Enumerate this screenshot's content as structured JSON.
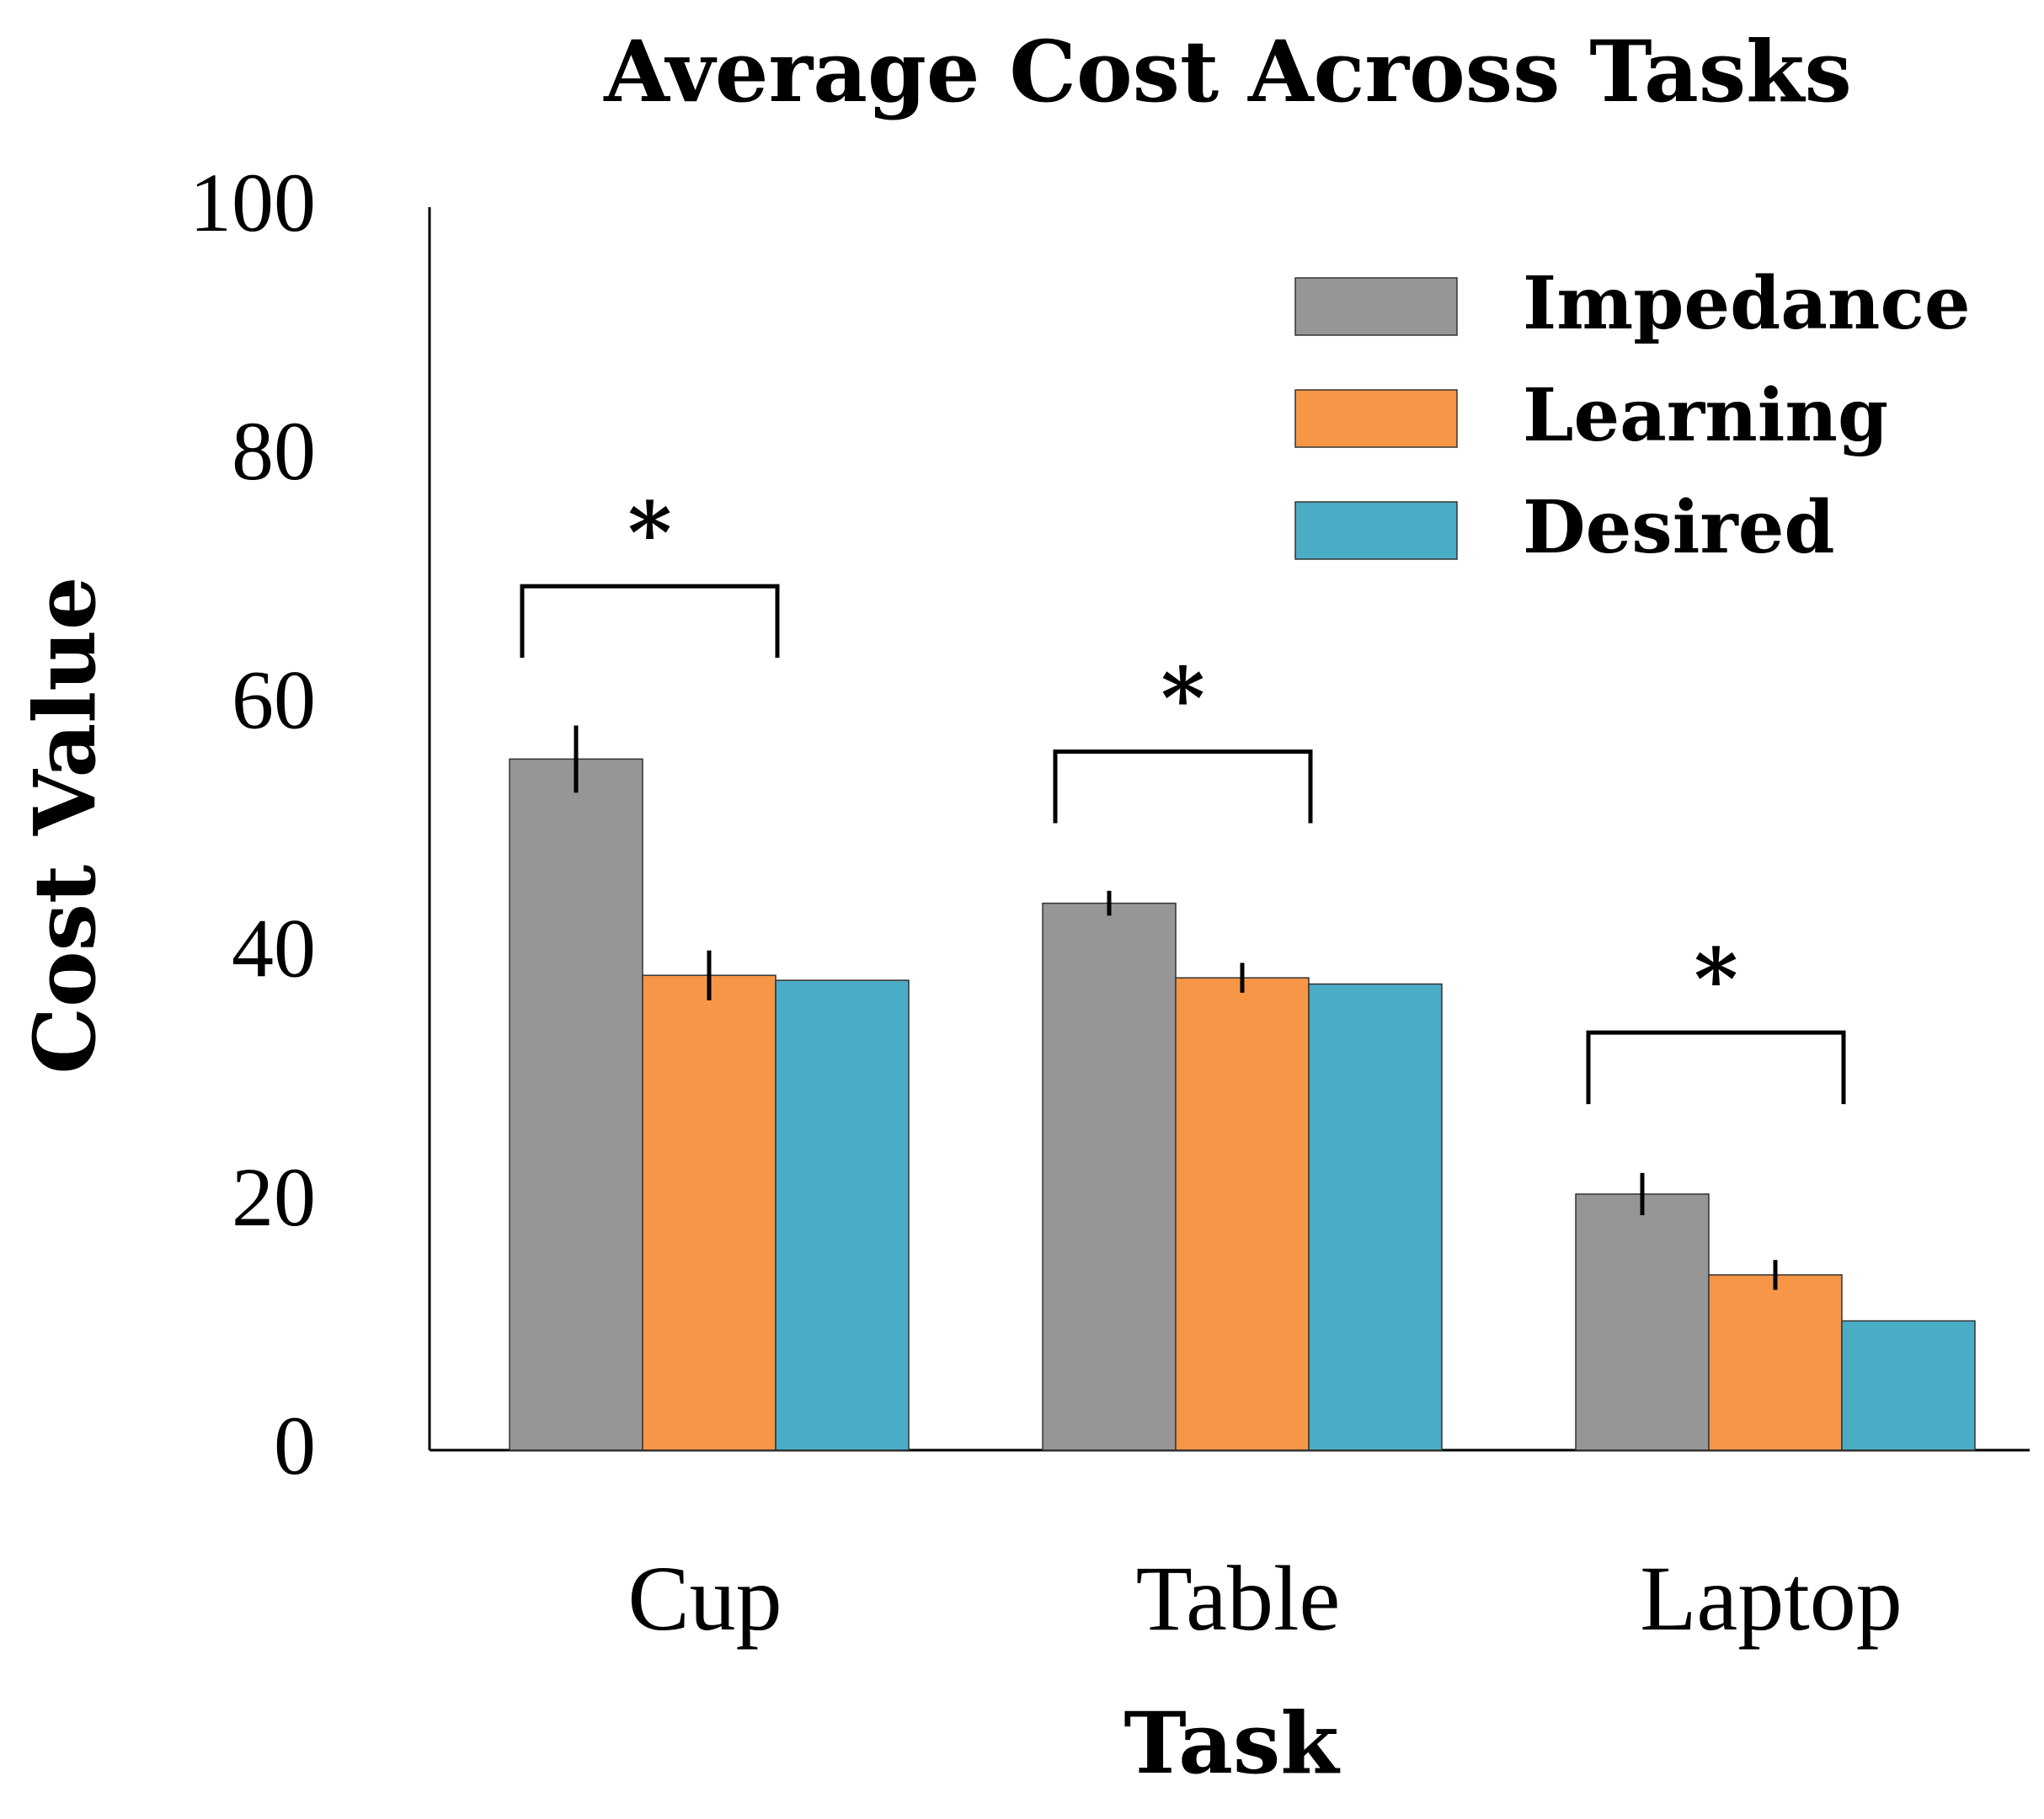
{
  "chart_data": {
    "type": "bar",
    "title": "Average Cost Across Tasks",
    "xlabel": "Task",
    "ylabel": "Cost Value",
    "ylim": [
      0,
      100
    ],
    "yticks": [
      0,
      20,
      40,
      60,
      80,
      100
    ],
    "categories": [
      "Cup",
      "Table",
      "Laptop"
    ],
    "series": [
      {
        "name": "Impedance",
        "color": "#969696",
        "values": [
          55.6,
          44.0,
          20.6
        ],
        "errors": [
          2.7,
          1.0,
          1.7
        ]
      },
      {
        "name": "Learning",
        "color": "#f79646",
        "values": [
          38.2,
          38.0,
          14.1
        ],
        "errors": [
          2.0,
          1.2,
          1.2
        ]
      },
      {
        "name": "Desired",
        "color": "#4bacc6",
        "values": [
          37.8,
          37.5,
          10.4
        ],
        "errors": [
          0,
          0,
          0
        ]
      }
    ],
    "significance": [
      {
        "category": "Cup",
        "label": "*",
        "bracket_y": 69.5
      },
      {
        "category": "Table",
        "label": "*",
        "bracket_y": 56.2
      },
      {
        "category": "Laptop",
        "label": "*",
        "bracket_y": 33.6
      }
    ],
    "legend": {
      "position": "top-right"
    },
    "grid": false
  }
}
